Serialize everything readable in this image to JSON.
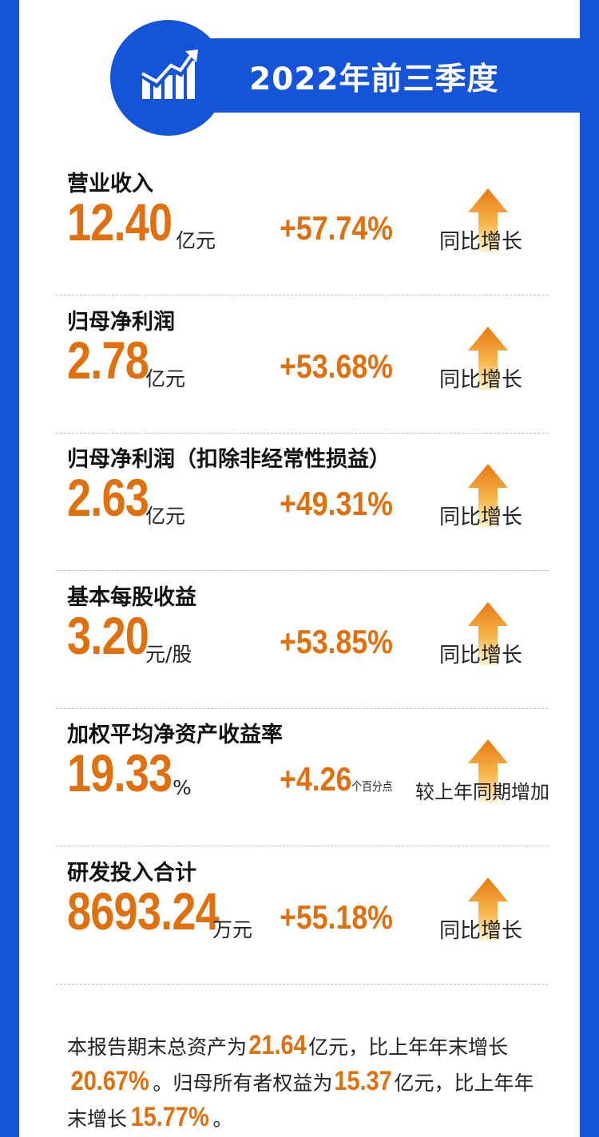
{
  "header": {
    "title": "2022年前三季度",
    "icon": "growth-chart-icon"
  },
  "colors": {
    "brand_blue": "#1553d8",
    "accent_orange": "#e06f0e"
  },
  "metrics": [
    {
      "title": "营业收入",
      "value": "12.40",
      "unit": "亿元",
      "change": "+57.74%",
      "change_sub": "",
      "label": "同比增长"
    },
    {
      "title": "归母净利润",
      "value": "2.78",
      "unit": "亿元",
      "change": "+53.68%",
      "change_sub": "",
      "label": "同比增长"
    },
    {
      "title": "归母净利润（扣除非经常性损益）",
      "value": "2.63",
      "unit": "亿元",
      "change": "+49.31%",
      "change_sub": "",
      "label": "同比增长"
    },
    {
      "title": "基本每股收益",
      "value": "3.20",
      "unit": "元/股",
      "change": "+53.85%",
      "change_sub": "",
      "label": "同比增长"
    },
    {
      "title": "加权平均净资产收益率",
      "value": "19.33",
      "unit": "%",
      "change": "+4.26",
      "change_sub": "个百分点",
      "label": "较上年同期增加"
    },
    {
      "title": "研发投入合计",
      "value": "8693.24",
      "unit": "万元",
      "change": "+55.18%",
      "change_sub": "",
      "label": "同比增长"
    }
  ],
  "summary": {
    "t1": "本报告期末总资产为",
    "v1": "21.64",
    "t2": "亿元，比上年年末增长",
    "v2": "20.67%",
    "t3": "。归母所有者权益为",
    "v3": "15.37",
    "t4": "亿元，比上年年末增长",
    "v4": "15.77%",
    "t5": "。"
  }
}
